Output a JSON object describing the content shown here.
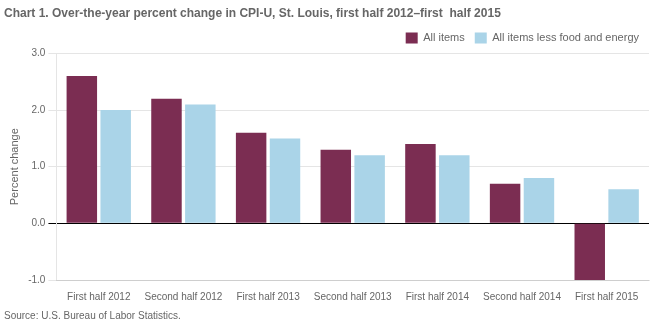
{
  "chart_data": {
    "type": "bar",
    "title": "Chart 1. Over-the-year percent change in CPI-U, St. Louis, first half 2012–first  half 2015",
    "ylabel": "Percent change",
    "source": "Source: U.S. Bureau of Labor Statistics.",
    "categories": [
      "First half 2012",
      "Second half 2012",
      "First half 2013",
      "Second half 2013",
      "First half 2014",
      "Second half 2014",
      "First half 2015"
    ],
    "series": [
      {
        "name": "All items",
        "color": "#7b2d52",
        "values": [
          2.6,
          2.2,
          1.6,
          1.3,
          1.4,
          0.7,
          -1.0
        ]
      },
      {
        "name": "All items less food and energy",
        "color": "#aad4e8",
        "values": [
          2.0,
          2.1,
          1.5,
          1.2,
          1.2,
          0.8,
          0.6
        ]
      }
    ],
    "ylim": [
      -1.0,
      3.0
    ],
    "yticks": [
      {
        "value": -1.0,
        "label": "-1.0"
      },
      {
        "value": 0.0,
        "label": "0.0"
      },
      {
        "value": 1.0,
        "label": "1.0"
      },
      {
        "value": 2.0,
        "label": "2.0"
      },
      {
        "value": 3.0,
        "label": "3.0"
      }
    ],
    "grid": true,
    "legend": "upper right"
  }
}
